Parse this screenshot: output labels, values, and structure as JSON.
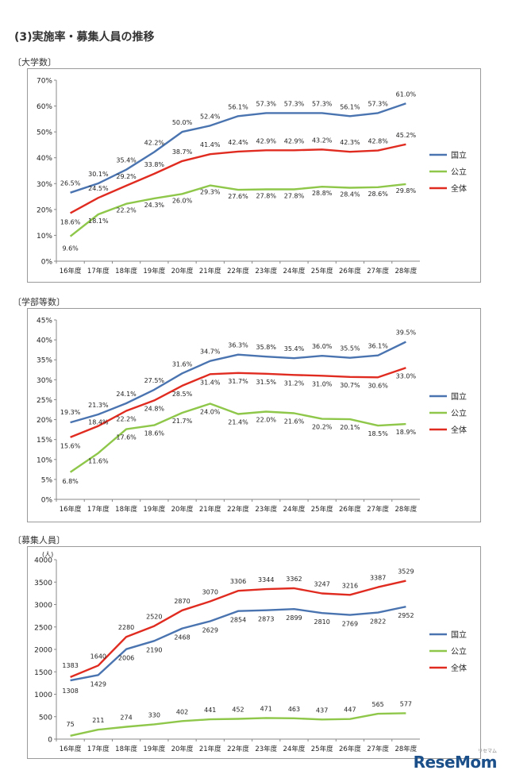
{
  "title": "(3)実施率・募集人員の推移",
  "watermark": "ReseMom",
  "watermark_sub": "リセマム",
  "colors": {
    "national": "#4a74b0",
    "public": "#8ec74a",
    "total": "#e02b20"
  },
  "chart_data": [
    {
      "type": "line",
      "section_label": "〔大学数〕",
      "title": "",
      "unit_label": "",
      "categories": [
        "16年度",
        "17年度",
        "18年度",
        "19年度",
        "20年度",
        "21年度",
        "22年度",
        "23年度",
        "24年度",
        "25年度",
        "26年度",
        "27年度",
        "28年度"
      ],
      "yticks": [
        "0%",
        "10%",
        "20%",
        "30%",
        "40%",
        "50%",
        "60%",
        "70%"
      ],
      "ylim": [
        0,
        70
      ],
      "legend": [
        "国立",
        "公立",
        "全体"
      ],
      "series": [
        {
          "name": "国立",
          "key": "national",
          "values": [
            26.5,
            30.1,
            35.4,
            42.2,
            50.0,
            52.4,
            56.1,
            57.3,
            57.3,
            57.3,
            56.1,
            57.3,
            61.0
          ],
          "labels": [
            "26.5%",
            "30.1%",
            "35.4%",
            "42.2%",
            "50.0%",
            "52.4%",
            "56.1%",
            "57.3%",
            "57.3%",
            "57.3%",
            "56.1%",
            "57.3%",
            "61.0%"
          ]
        },
        {
          "name": "公立",
          "key": "public",
          "values": [
            9.6,
            18.1,
            22.2,
            24.3,
            26.0,
            29.3,
            27.6,
            27.8,
            27.8,
            28.8,
            28.4,
            28.6,
            29.8
          ],
          "labels": [
            "9.6%",
            "18.1%",
            "22.2%",
            "24.3%",
            "26.0%",
            "29.3%",
            "27.6%",
            "27.8%",
            "27.8%",
            "28.8%",
            "28.4%",
            "28.6%",
            "29.8%"
          ]
        },
        {
          "name": "全体",
          "key": "total",
          "values": [
            18.6,
            24.5,
            29.2,
            33.8,
            38.7,
            41.4,
            42.4,
            42.9,
            42.9,
            43.2,
            42.3,
            42.8,
            45.2
          ],
          "labels": [
            "18.6%",
            "24.5%",
            "29.2%",
            "33.8%",
            "38.7%",
            "41.4%",
            "42.4%",
            "42.9%",
            "42.9%",
            "43.2%",
            "42.3%",
            "42.8%",
            "45.2%"
          ]
        }
      ]
    },
    {
      "type": "line",
      "section_label": "〔学部等数〕",
      "title": "",
      "unit_label": "",
      "categories": [
        "16年度",
        "17年度",
        "18年度",
        "19年度",
        "20年度",
        "21年度",
        "22年度",
        "23年度",
        "24年度",
        "25年度",
        "26年度",
        "27年度",
        "28年度"
      ],
      "yticks": [
        "0%",
        "5%",
        "10%",
        "15%",
        "20%",
        "25%",
        "30%",
        "35%",
        "40%",
        "45%"
      ],
      "ylim": [
        0,
        45
      ],
      "legend": [
        "国立",
        "公立",
        "全体"
      ],
      "series": [
        {
          "name": "国立",
          "key": "national",
          "values": [
            19.3,
            21.3,
            24.1,
            27.5,
            31.6,
            34.7,
            36.3,
            35.8,
            35.4,
            36.0,
            35.5,
            36.1,
            39.5
          ],
          "labels": [
            "19.3%",
            "21.3%",
            "24.1%",
            "27.5%",
            "31.6%",
            "34.7%",
            "36.3%",
            "35.8%",
            "35.4%",
            "36.0%",
            "35.5%",
            "36.1%",
            "39.5%"
          ]
        },
        {
          "name": "公立",
          "key": "public",
          "values": [
            6.8,
            11.6,
            17.6,
            18.6,
            21.7,
            24.0,
            21.4,
            22.0,
            21.6,
            20.2,
            20.1,
            18.5,
            18.9
          ],
          "labels": [
            "6.8%",
            "11.6%",
            "17.6%",
            "18.6%",
            "21.7%",
            "24.0%",
            "21.4%",
            "22.0%",
            "21.6%",
            "20.2%",
            "20.1%",
            "18.5%",
            "18.9%"
          ]
        },
        {
          "name": "全体",
          "key": "total",
          "values": [
            15.6,
            18.4,
            22.2,
            24.8,
            28.5,
            31.4,
            31.7,
            31.5,
            31.2,
            31.0,
            30.7,
            30.6,
            33.0
          ],
          "labels": [
            "15.6%",
            "18.4%",
            "22.2%",
            "24.8%",
            "28.5%",
            "31.4%",
            "31.7%",
            "31.5%",
            "31.2%",
            "31.0%",
            "30.7%",
            "30.6%",
            "33.0%"
          ]
        }
      ]
    },
    {
      "type": "line",
      "section_label": "〔募集人員〕",
      "title": "",
      "unit_label": "(人)",
      "categories": [
        "16年度",
        "17年度",
        "18年度",
        "19年度",
        "20年度",
        "21年度",
        "22年度",
        "23年度",
        "24年度",
        "25年度",
        "26年度",
        "27年度",
        "28年度"
      ],
      "yticks": [
        "0",
        "500",
        "1000",
        "1500",
        "2000",
        "2500",
        "3000",
        "3500",
        "4000"
      ],
      "ylim": [
        0,
        4000
      ],
      "legend": [
        "国立",
        "公立",
        "全体"
      ],
      "series": [
        {
          "name": "国立",
          "key": "national",
          "values": [
            1308,
            1429,
            2006,
            2190,
            2468,
            2629,
            2854,
            2873,
            2899,
            2810,
            2769,
            2822,
            2952
          ],
          "labels": [
            "1308",
            "1429",
            "2006",
            "2190",
            "2468",
            "2629",
            "2854",
            "2873",
            "2899",
            "2810",
            "2769",
            "2822",
            "2952"
          ]
        },
        {
          "name": "公立",
          "key": "public",
          "values": [
            75,
            211,
            274,
            330,
            402,
            441,
            452,
            471,
            463,
            437,
            447,
            565,
            577
          ],
          "labels": [
            "75",
            "211",
            "274",
            "330",
            "402",
            "441",
            "452",
            "471",
            "463",
            "437",
            "447",
            "565",
            "577"
          ]
        },
        {
          "name": "全体",
          "key": "total",
          "values": [
            1383,
            1640,
            2280,
            2520,
            2870,
            3070,
            3306,
            3344,
            3362,
            3247,
            3216,
            3387,
            3529
          ],
          "labels": [
            "1383",
            "1640",
            "2280",
            "2520",
            "2870",
            "3070",
            "3306",
            "3344",
            "3362",
            "3247",
            "3216",
            "3387",
            "3529"
          ]
        }
      ]
    }
  ]
}
